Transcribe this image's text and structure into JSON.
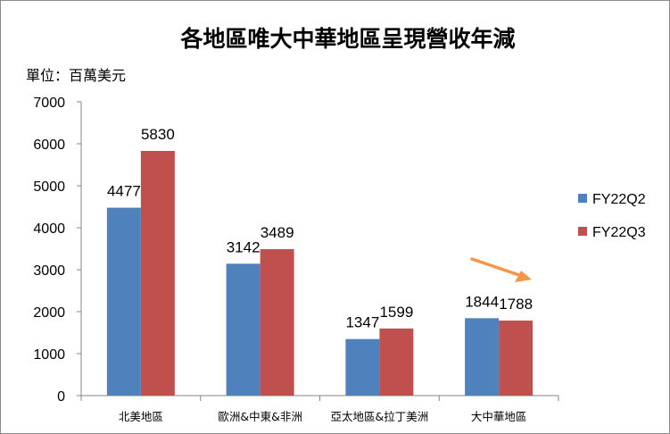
{
  "chart_data": {
    "type": "bar",
    "title": "各地區唯大中華地區呈現營收年減",
    "unit_label": "單位：百萬美元",
    "categories": [
      "北美地區",
      "歐洲&中東&非洲",
      "亞太地區&拉丁美洲",
      "大中華地區"
    ],
    "series": [
      {
        "name": "FY22Q2",
        "color": "#4f81bd",
        "values": [
          4477,
          3142,
          1347,
          1844
        ]
      },
      {
        "name": "FY22Q3",
        "color": "#c0504d",
        "values": [
          5830,
          3489,
          1599,
          1788
        ]
      }
    ],
    "ylim": [
      0,
      7000
    ],
    "yticks": [
      0,
      1000,
      2000,
      3000,
      4000,
      5000,
      6000,
      7000
    ],
    "grid": false,
    "legend_position": "right",
    "annotation": {
      "type": "arrow",
      "color": "#f79646",
      "points_to": "大中華地區"
    }
  }
}
